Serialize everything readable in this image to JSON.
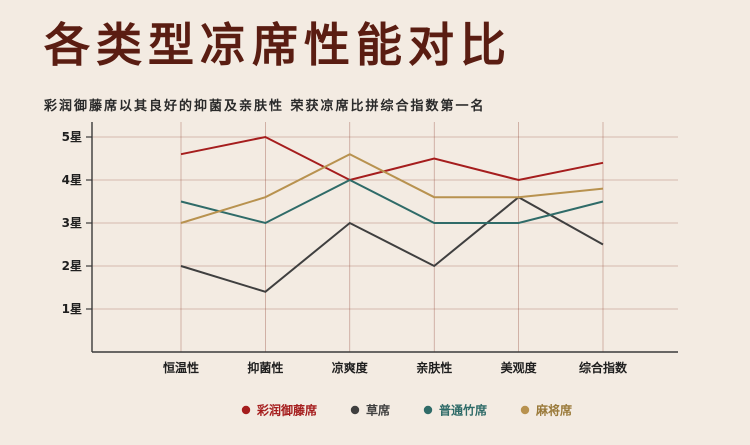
{
  "header": {
    "title": "各类型凉席性能对比",
    "subtitle": "彩润御藤席以其良好的抑菌及亲肤性 荣获凉席比拼综合指数第一名"
  },
  "chart_data": {
    "type": "line",
    "categories": [
      "恒温性",
      "抑菌性",
      "凉爽度",
      "亲肤性",
      "美观度",
      "综合指数"
    ],
    "y_ticks": [
      {
        "value": 1,
        "label": "1星"
      },
      {
        "value": 2,
        "label": "2星"
      },
      {
        "value": 3,
        "label": "3星"
      },
      {
        "value": 4,
        "label": "4星"
      },
      {
        "value": 5,
        "label": "5星"
      }
    ],
    "ylim": [
      0,
      5.5
    ],
    "grid": true,
    "legend_position": "bottom",
    "series": [
      {
        "name": "彩润御藤席",
        "color": "#a51d1d",
        "values": [
          4.6,
          5.0,
          4.0,
          4.5,
          4.0,
          4.4
        ]
      },
      {
        "name": "草席",
        "color": "#3f3f3f",
        "values": [
          2.0,
          1.4,
          3.0,
          2.0,
          3.6,
          2.5
        ]
      },
      {
        "name": "普通竹席",
        "color": "#2f6b68",
        "values": [
          3.5,
          3.0,
          4.0,
          3.0,
          3.0,
          3.5
        ]
      },
      {
        "name": "麻将席",
        "color": "#b8924f",
        "values": [
          3.0,
          3.6,
          4.6,
          3.6,
          3.6,
          3.8
        ]
      }
    ]
  }
}
